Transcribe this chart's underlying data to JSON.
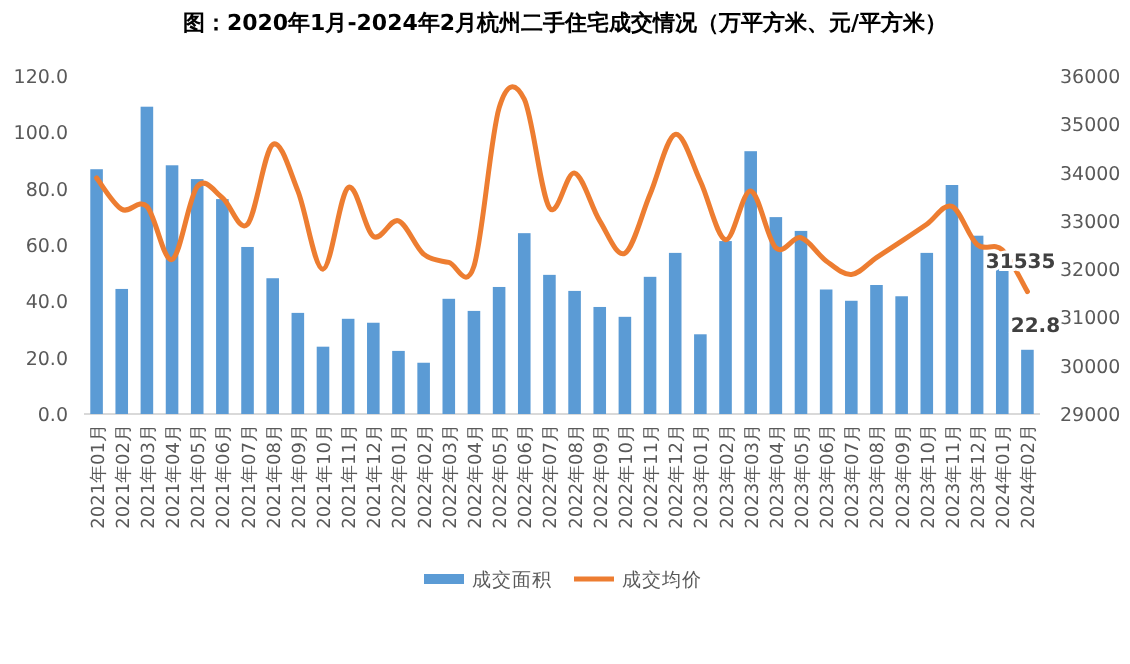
{
  "chart_data": {
    "type": "bar",
    "title": "图：2020年1月-2024年2月杭州二手住宅成交情况（万平方米、元/平方米）",
    "categories": [
      "2021年01月",
      "2021年02月",
      "2021年03月",
      "2021年04月",
      "2021年05月",
      "2021年06月",
      "2021年07月",
      "2021年08月",
      "2021年09月",
      "2021年10月",
      "2021年11月",
      "2021年12月",
      "2022年01月",
      "2022年02月",
      "2022年03月",
      "2022年04月",
      "2022年05月",
      "2022年06月",
      "2022年07月",
      "2022年08月",
      "2022年09月",
      "2022年10月",
      "2022年11月",
      "2022年12月",
      "2023年01月",
      "2023年02月",
      "2023年03月",
      "2023年04月",
      "2023年05月",
      "2023年06月",
      "2023年07月",
      "2023年08月",
      "2023年09月",
      "2023年10月",
      "2023年11月",
      "2023年12月",
      "2024年01月",
      "2024年02月"
    ],
    "series": [
      {
        "name": "成交面积",
        "color": "#5b9bd5",
        "values": [
          86.9,
          44.4,
          109.1,
          88.3,
          83.4,
          76.3,
          59.3,
          48.2,
          35.9,
          23.9,
          33.8,
          32.4,
          22.4,
          18.2,
          40.9,
          36.6,
          45.1,
          64.2,
          49.4,
          43.7,
          38.0,
          34.5,
          48.7,
          57.2,
          28.3,
          61.4,
          93.3,
          69.9,
          65.0,
          44.2,
          40.2,
          45.8,
          41.8,
          57.2,
          81.3,
          63.3,
          53.1,
          22.8
        ],
        "value_labels": [
          null,
          null,
          null,
          null,
          null,
          null,
          null,
          null,
          null,
          null,
          null,
          null,
          null,
          null,
          null,
          null,
          null,
          null,
          null,
          null,
          null,
          null,
          null,
          null,
          null,
          null,
          null,
          null,
          null,
          null,
          null,
          null,
          null,
          null,
          null,
          null,
          null,
          "22.8"
        ]
      },
      {
        "name": "成交均价",
        "type": "line",
        "axis": "y2",
        "color": "#ed7d31",
        "values": [
          33890,
          33240,
          33300,
          32200,
          33710,
          33480,
          32930,
          34580,
          33620,
          32000,
          33690,
          32680,
          33000,
          32310,
          32140,
          32060,
          35340,
          35520,
          33270,
          33990,
          33000,
          32330,
          33550,
          34790,
          33820,
          32610,
          33620,
          32440,
          32650,
          32170,
          31890,
          32240,
          32580,
          32930,
          33300,
          32510,
          32400,
          31535
        ],
        "value_labels": [
          null,
          null,
          null,
          null,
          null,
          null,
          null,
          null,
          null,
          null,
          null,
          null,
          null,
          null,
          null,
          null,
          null,
          null,
          null,
          null,
          null,
          null,
          null,
          null,
          null,
          null,
          null,
          null,
          null,
          null,
          null,
          null,
          null,
          null,
          null,
          null,
          null,
          "31535"
        ]
      }
    ],
    "ylim": [
      0,
      120
    ],
    "yticks": [
      {
        "value": 0,
        "label": "0.0"
      },
      {
        "value": 20,
        "label": "20.0"
      },
      {
        "value": 40,
        "label": "40.0"
      },
      {
        "value": 60,
        "label": "60.0"
      },
      {
        "value": 80,
        "label": "80.0"
      },
      {
        "value": 100,
        "label": "100.0"
      },
      {
        "value": 120,
        "label": "120.0"
      }
    ],
    "y2lim": [
      29000,
      36000
    ],
    "y2ticks": [
      29000,
      30000,
      31000,
      32000,
      33000,
      34000,
      35000,
      36000
    ],
    "grid": false,
    "legend": "bottom",
    "marker": "none",
    "line_style": "solid"
  }
}
